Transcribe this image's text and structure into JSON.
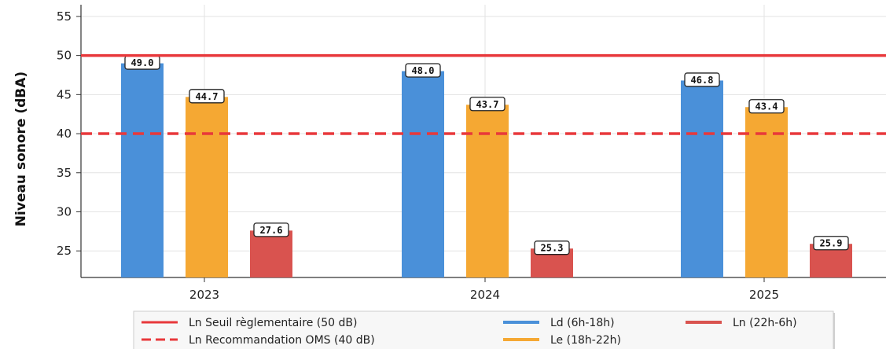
{
  "chart_data": {
    "type": "bar",
    "categories": [
      "2023",
      "2024",
      "2025"
    ],
    "series": [
      {
        "name": "Ld (6h-18h)",
        "color": "#4a90d9",
        "values": [
          49.0,
          48.0,
          46.8
        ],
        "labels": [
          "49.0",
          "48.0",
          "46.8"
        ]
      },
      {
        "name": "Le (18h-22h)",
        "color": "#f5a833",
        "values": [
          44.7,
          43.7,
          43.4
        ],
        "labels": [
          "44.7",
          "43.7",
          "43.4"
        ]
      },
      {
        "name": "Ln (22h-6h)",
        "color": "#d9534f",
        "values": [
          27.6,
          25.3,
          25.9
        ],
        "labels": [
          "27.6",
          "25.3",
          "25.9"
        ]
      }
    ],
    "reference_lines": [
      {
        "name": "Ln Seuil règlementaire (50 dB)",
        "value": 50,
        "style": "solid",
        "color": "#e8383b"
      },
      {
        "name": "Ln Recommandation OMS (40 dB)",
        "value": 40,
        "style": "dashed",
        "color": "#e8383b"
      }
    ],
    "xlabel": "",
    "ylabel": "Niveau sonore (dBA)",
    "ylim": [
      21.6,
      56.5
    ],
    "yticks": [
      25,
      30,
      35,
      40,
      45,
      50,
      55
    ],
    "grid": true,
    "legend_placement": "bottom-center"
  }
}
